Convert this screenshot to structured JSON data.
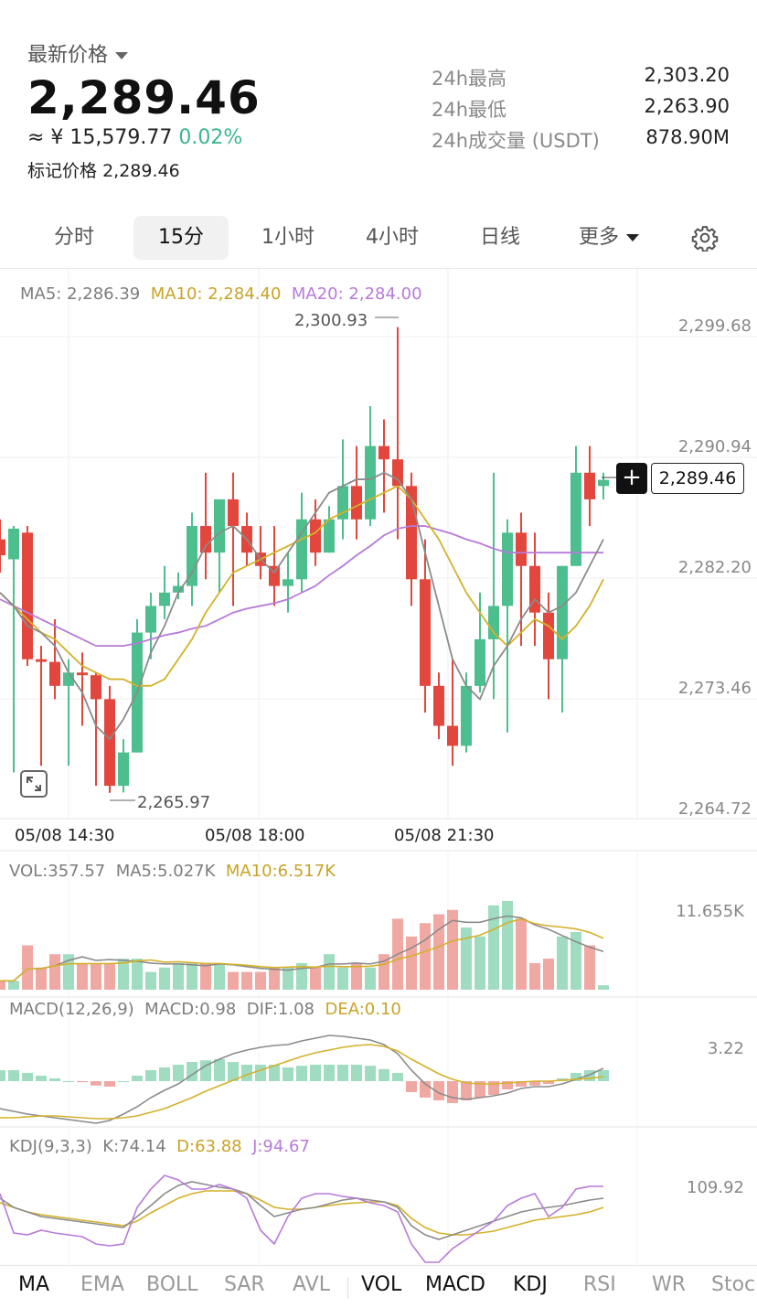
{
  "header": {
    "label": "最新价格",
    "price": "2,289.46",
    "cny_prefix": "≈ ¥ ",
    "cny_value": "15,579.77",
    "change_pct": "0.02%",
    "mark_label": "标记价格",
    "mark_value": "2,289.46",
    "stats": [
      {
        "label": "24h最高",
        "value": "2,303.20"
      },
      {
        "label": "24h最低",
        "value": "2,263.90"
      },
      {
        "label": "24h成交量 (USDT)",
        "value": "878.90M"
      }
    ]
  },
  "tabs": [
    {
      "label": "分时",
      "active": false
    },
    {
      "label": "15分",
      "active": true
    },
    {
      "label": "1小时",
      "active": false
    },
    {
      "label": "4小时",
      "active": false
    },
    {
      "label": "日线",
      "active": false
    },
    {
      "label": "更多",
      "active": false
    }
  ],
  "settings_icon": "gear-icon",
  "main_chart": {
    "legend": {
      "ma5": "MA5: 2,286.39",
      "ma10": "MA10: 2,284.40",
      "ma20": "MA20: 2,284.00"
    },
    "y_ticks": [
      "2,299.68",
      "2,290.94",
      "2,282.20",
      "2,273.46",
      "2,264.72"
    ],
    "x_ticks": [
      "05/08 14:30",
      "05/08 18:00",
      "05/08 21:30"
    ],
    "high_label": "2,300.93",
    "low_label": "2,265.97",
    "last_price_tag": "2,289.46",
    "plus_label": "+"
  },
  "vol_panel": {
    "legend": {
      "vol": "VOL:357.57",
      "ma5": "MA5:5.027K",
      "ma10": "MA10:6.517K"
    },
    "y_tick": "11.655K"
  },
  "macd_panel": {
    "legend": {
      "params": "MACD(12,26,9)",
      "macd": "MACD:0.98",
      "dif": "DIF:1.08",
      "dea": "DEA:0.10"
    },
    "y_tick": "3.22"
  },
  "kdj_panel": {
    "legend": {
      "params": "KDJ(9,3,3)",
      "k": "K:74.14",
      "d": "D:63.88",
      "j": "J:94.67"
    },
    "y_tick": "109.92"
  },
  "bottom_tabs": [
    {
      "label": "MA",
      "active": true
    },
    {
      "label": "EMA",
      "active": false
    },
    {
      "label": "BOLL",
      "active": false
    },
    {
      "label": "SAR",
      "active": false
    },
    {
      "label": "AVL",
      "active": false
    },
    {
      "label": "VOL",
      "active": true
    },
    {
      "label": "MACD",
      "active": true
    },
    {
      "label": "KDJ",
      "active": true
    },
    {
      "label": "RSI",
      "active": false
    },
    {
      "label": "WR",
      "active": false
    },
    {
      "label": "Stoc",
      "active": false
    }
  ],
  "colors": {
    "up": "#4dbf8e",
    "down": "#e2463c",
    "ma5": "#8b8b8b",
    "ma10": "#d4b12a",
    "ma20": "#b77ad9"
  },
  "chart_data": {
    "type": "candlestick",
    "y_range": [
      2264.72,
      2302.0
    ],
    "candles": [
      {
        "o": 2285.0,
        "h": 2286.5,
        "c": 2283.8,
        "l": 2282.5
      },
      {
        "o": 2283.5,
        "h": 2286.0,
        "c": 2285.8,
        "l": 2267.5
      },
      {
        "o": 2285.5,
        "h": 2286.0,
        "c": 2276.0,
        "l": 2275.5
      },
      {
        "o": 2276.0,
        "h": 2277.0,
        "c": 2275.8,
        "l": 2268.0
      },
      {
        "o": 2275.8,
        "h": 2279.0,
        "c": 2274.0,
        "l": 2273.0
      },
      {
        "o": 2274.0,
        "h": 2276.0,
        "c": 2275.0,
        "l": 2268.0
      },
      {
        "o": 2275.0,
        "h": 2276.5,
        "c": 2274.8,
        "l": 2271.0
      },
      {
        "o": 2274.8,
        "h": 2275.0,
        "c": 2273.0,
        "l": 2266.5
      },
      {
        "o": 2273.0,
        "h": 2274.0,
        "c": 2266.5,
        "l": 2265.97
      },
      {
        "o": 2266.5,
        "h": 2270.0,
        "c": 2269.0,
        "l": 2266.0
      },
      {
        "o": 2269.0,
        "h": 2279.0,
        "c": 2278.0,
        "l": 2269.0
      },
      {
        "o": 2278.0,
        "h": 2281.0,
        "c": 2280.0,
        "l": 2276.0
      },
      {
        "o": 2280.0,
        "h": 2283.0,
        "c": 2281.0,
        "l": 2279.0
      },
      {
        "o": 2281.0,
        "h": 2282.5,
        "c": 2281.5,
        "l": 2280.5
      },
      {
        "o": 2281.5,
        "h": 2287.0,
        "c": 2286.0,
        "l": 2280.0
      },
      {
        "o": 2286.0,
        "h": 2290.0,
        "c": 2284.0,
        "l": 2282.0
      },
      {
        "o": 2284.0,
        "h": 2288.0,
        "c": 2288.0,
        "l": 2281.0
      },
      {
        "o": 2288.0,
        "h": 2290.0,
        "c": 2286.0,
        "l": 2280.0
      },
      {
        "o": 2286.0,
        "h": 2287.0,
        "c": 2284.0,
        "l": 2283.0
      },
      {
        "o": 2284.0,
        "h": 2286.0,
        "c": 2283.0,
        "l": 2282.0
      },
      {
        "o": 2283.0,
        "h": 2286.0,
        "c": 2281.5,
        "l": 2280.0
      },
      {
        "o": 2281.5,
        "h": 2284.0,
        "c": 2282.0,
        "l": 2279.5
      },
      {
        "o": 2282.0,
        "h": 2288.5,
        "c": 2286.5,
        "l": 2281.0
      },
      {
        "o": 2286.5,
        "h": 2288.0,
        "c": 2284.0,
        "l": 2283.0
      },
      {
        "o": 2284.0,
        "h": 2287.5,
        "c": 2286.5,
        "l": 2284.0
      },
      {
        "o": 2286.5,
        "h": 2292.5,
        "c": 2289.0,
        "l": 2285.0
      },
      {
        "o": 2289.0,
        "h": 2292.0,
        "c": 2286.5,
        "l": 2285.0
      },
      {
        "o": 2286.5,
        "h": 2295.0,
        "c": 2292.0,
        "l": 2286.0
      },
      {
        "o": 2292.0,
        "h": 2294.0,
        "c": 2291.0,
        "l": 2287.0
      },
      {
        "o": 2291.0,
        "h": 2300.93,
        "c": 2289.0,
        "l": 2285.0
      },
      {
        "o": 2289.0,
        "h": 2290.0,
        "c": 2282.0,
        "l": 2280.0
      },
      {
        "o": 2282.0,
        "h": 2285.0,
        "c": 2274.0,
        "l": 2272.0
      },
      {
        "o": 2274.0,
        "h": 2275.0,
        "c": 2271.0,
        "l": 2270.0
      },
      {
        "o": 2271.0,
        "h": 2276.0,
        "c": 2269.5,
        "l": 2268.0
      },
      {
        "o": 2269.5,
        "h": 2275.0,
        "c": 2274.0,
        "l": 2269.0
      },
      {
        "o": 2274.0,
        "h": 2281.0,
        "c": 2277.5,
        "l": 2273.5
      },
      {
        "o": 2277.5,
        "h": 2290.0,
        "c": 2280.0,
        "l": 2273.0
      },
      {
        "o": 2280.0,
        "h": 2286.5,
        "c": 2285.5,
        "l": 2270.5
      },
      {
        "o": 2285.5,
        "h": 2287.0,
        "c": 2283.0,
        "l": 2277.0
      },
      {
        "o": 2283.0,
        "h": 2285.5,
        "c": 2279.5,
        "l": 2277.0
      },
      {
        "o": 2279.5,
        "h": 2281.0,
        "c": 2276.0,
        "l": 2273.0
      },
      {
        "o": 2276.0,
        "h": 2283.0,
        "c": 2283.0,
        "l": 2272.0
      },
      {
        "o": 2283.0,
        "h": 2292.0,
        "c": 2290.0,
        "l": 2283.0
      },
      {
        "o": 2290.0,
        "h": 2292.0,
        "c": 2288.0,
        "l": 2286.0
      },
      {
        "o": 2289.0,
        "h": 2290.0,
        "c": 2289.46,
        "l": 2288.0
      }
    ],
    "ma5": [
      2281,
      2280,
      2278.5,
      2278,
      2277,
      2275,
      2273.5,
      2271,
      2270,
      2271.5,
      2273.5,
      2276.5,
      2278.5,
      2281,
      2282.5,
      2284.5,
      2285.5,
      2286,
      2285,
      2283.5,
      2282.5,
      2284,
      2285.5,
      2287,
      2288.5,
      2289,
      2289.5,
      2289.5,
      2290,
      2289.5,
      2288,
      2284,
      2280,
      2276,
      2274,
      2273,
      2275.5,
      2277,
      2279,
      2280.5,
      2279.5,
      2280,
      2281,
      2283,
      2285
    ],
    "ma10": [
      2281,
      2280,
      2279,
      2278,
      2277.5,
      2276.5,
      2275.5,
      2275,
      2274.5,
      2274.5,
      2274,
      2274,
      2274.5,
      2276,
      2277.5,
      2279.5,
      2281,
      2282.5,
      2283,
      2283.5,
      2284,
      2284.5,
      2285,
      2285.5,
      2286.5,
      2287,
      2287.5,
      2288,
      2288.5,
      2289,
      2288,
      2286.5,
      2285,
      2283,
      2281,
      2279.5,
      2278,
      2277,
      2278,
      2279,
      2278.5,
      2277.5,
      2278.5,
      2280,
      2282
    ],
    "ma20": [
      2280.5,
      2280,
      2279.5,
      2279,
      2278.5,
      2278,
      2277.5,
      2277,
      2277,
      2277,
      2277.2,
      2277.5,
      2277.8,
      2278,
      2278.3,
      2278.5,
      2279,
      2279.5,
      2279.8,
      2280,
      2280.2,
      2280.5,
      2281,
      2281.5,
      2282.3,
      2283,
      2283.8,
      2284.5,
      2285.3,
      2285.8,
      2286,
      2286,
      2285.7,
      2285.4,
      2285,
      2284.7,
      2284.3,
      2284,
      2284,
      2284,
      2284,
      2284,
      2284,
      2284,
      2284
    ]
  }
}
